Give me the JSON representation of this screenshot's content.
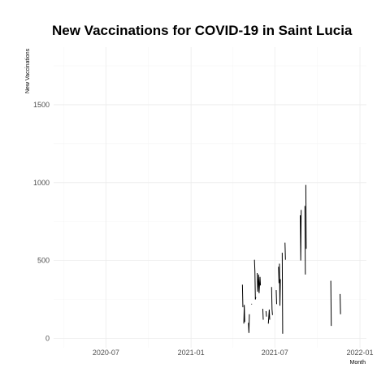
{
  "chart_data": {
    "type": "line",
    "title": "New Vaccinations for COVID-19 in Saint Lucia",
    "xlabel": "Month",
    "ylabel": "New Vaccinations",
    "xlim": [
      "2020-03-10",
      "2022-01-15"
    ],
    "ylim": [
      -60,
      1870
    ],
    "x_ticks": [
      {
        "date": "2020-07-01",
        "label": "2020-07"
      },
      {
        "date": "2021-01-01",
        "label": "2021-01"
      },
      {
        "date": "2021-07-01",
        "label": "2021-07"
      },
      {
        "date": "2022-01-01",
        "label": "2022-01"
      }
    ],
    "y_ticks": [
      0,
      500,
      1000,
      1500
    ],
    "x_minor_ticks": [
      "2020-04-01",
      "2020-10-01",
      "2021-04-01",
      "2021-10-01"
    ],
    "y_minor_ticks": [
      250,
      750,
      1250,
      1750
    ],
    "grid": true,
    "legend": "none",
    "line_color": "#000000",
    "series": [
      {
        "segments": [
          [
            [
              "2021-04-22",
              345
            ],
            [
              "2021-04-23",
              200
            ]
          ],
          [
            [
              "2021-04-25",
              95
            ],
            [
              "2021-04-26",
              215
            ],
            [
              "2021-04-27",
              105
            ]
          ],
          [
            [
              "2021-05-05",
              100
            ],
            [
              "2021-05-06",
              35
            ],
            [
              "2021-05-07",
              155
            ]
          ],
          [
            [
              "2021-05-12",
              220
            ]
          ],
          [
            [
              "2021-05-18",
              505
            ],
            [
              "2021-05-19",
              430
            ],
            [
              "2021-05-20",
              250
            ],
            [
              "2021-05-21",
              265
            ]
          ],
          [
            [
              "2021-05-24",
              420
            ],
            [
              "2021-05-25",
              300
            ],
            [
              "2021-05-27",
              410
            ],
            [
              "2021-05-28",
              290
            ],
            [
              "2021-05-30",
              395
            ],
            [
              "2021-05-31",
              340
            ]
          ],
          [
            [
              "2021-06-05",
              190
            ],
            [
              "2021-06-06",
              120
            ]
          ],
          [
            [
              "2021-06-12",
              175
            ],
            [
              "2021-06-13",
              140
            ]
          ],
          [
            [
              "2021-06-17",
              95
            ],
            [
              "2021-06-19",
              185
            ],
            [
              "2021-06-20",
              120
            ]
          ],
          [
            [
              "2021-06-24",
              330
            ],
            [
              "2021-06-25",
              185
            ],
            [
              "2021-06-26",
              150
            ]
          ],
          [
            [
              "2021-07-04",
              310
            ],
            [
              "2021-07-05",
              220
            ]
          ],
          [
            [
              "2021-07-09",
              460
            ],
            [
              "2021-07-10",
              355
            ]
          ],
          [
            [
              "2021-07-11",
              480
            ],
            [
              "2021-07-12",
              210
            ],
            [
              "2021-07-13",
              380
            ]
          ],
          [
            [
              "2021-07-17",
              550
            ],
            [
              "2021-07-18",
              30
            ]
          ],
          [
            [
              "2021-07-23",
              615
            ],
            [
              "2021-07-24",
              505
            ]
          ],
          [
            [
              "2021-08-25",
              790
            ],
            [
              "2021-08-26",
              500
            ],
            [
              "2021-08-27",
              825
            ]
          ],
          [
            [
              "2021-09-04",
              850
            ],
            [
              "2021-09-05",
              410
            ]
          ],
          [
            [
              "2021-09-06",
              985
            ],
            [
              "2021-09-07",
              575
            ]
          ],
          [
            [
              "2021-10-30",
              370
            ],
            [
              "2021-10-31",
              80
            ]
          ],
          [
            [
              "2021-11-19",
              285
            ],
            [
              "2021-11-20",
              155
            ]
          ]
        ]
      }
    ]
  }
}
